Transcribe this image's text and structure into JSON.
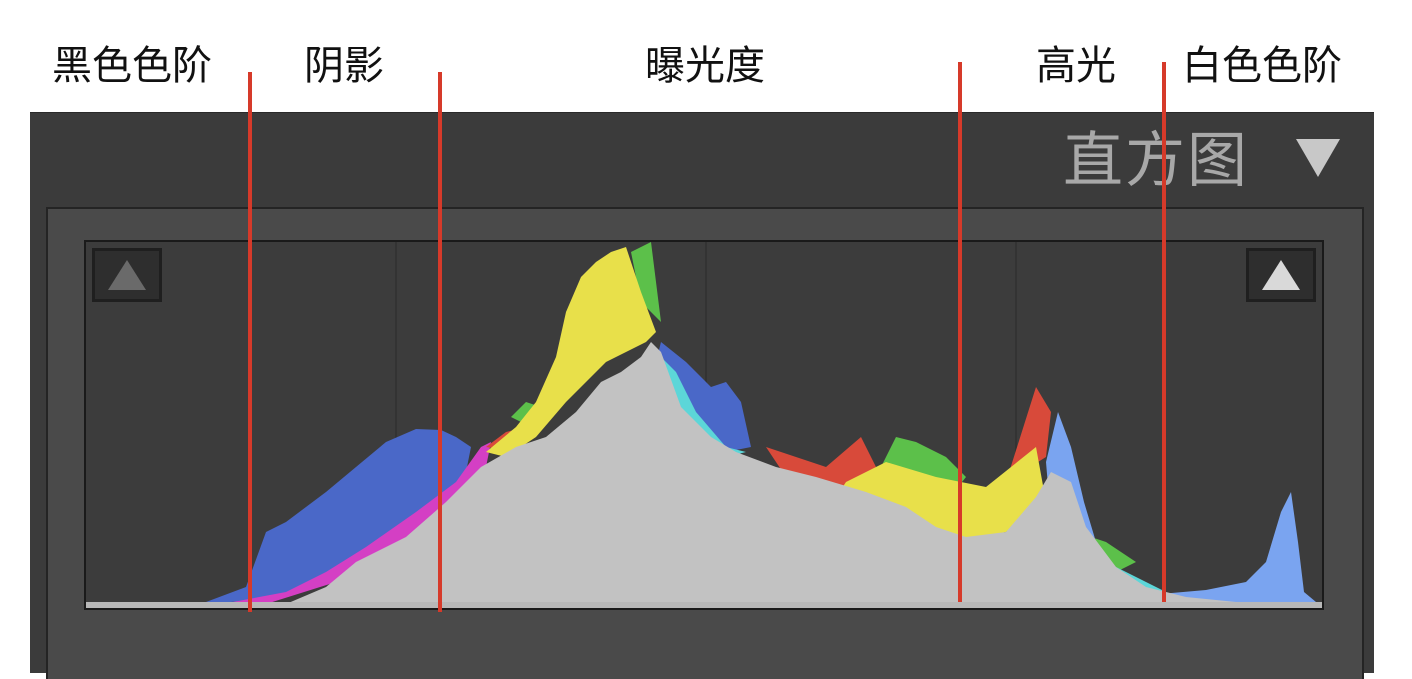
{
  "panel": {
    "title": "直方图",
    "collapse_icon": "triangle-down-icon"
  },
  "zones": [
    {
      "label": "黑色色阶"
    },
    {
      "label": "阴影"
    },
    {
      "label": "曝光度"
    },
    {
      "label": "高光"
    },
    {
      "label": "白色色阶"
    }
  ],
  "clipping": {
    "shadow_icon": "triangle-up-icon",
    "highlight_icon": "triangle-up-icon",
    "shadow_active": false,
    "highlight_active": true
  },
  "colors": {
    "marker": "#d63a2a",
    "luminance": "#c2c2c2",
    "yellow": "#e8e04a",
    "blue": "#4a68c8",
    "magenta": "#d43fc4",
    "green": "#5cc04a",
    "red": "#d84a3a",
    "cyan": "#5cd6d8",
    "lightblue": "#7aa4f0"
  }
}
